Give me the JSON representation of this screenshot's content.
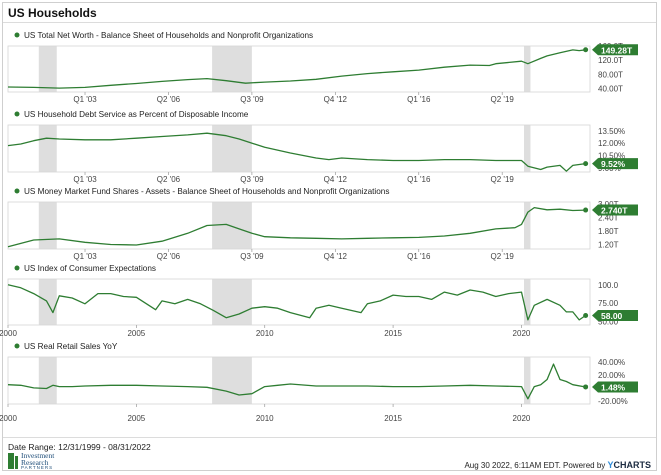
{
  "page": {
    "title": "US Households",
    "date_range": "Date Range: 12/31/1999 - 08/31/2022",
    "footer_stamp": "Aug 30 2022, 6:11AM EDT. Powered by ",
    "brand_prefix": "Y",
    "brand_suffix": "CHARTS",
    "logo_line1": "Investment",
    "logo_line2": "Research",
    "logo_line3": "PARTNERS"
  },
  "colors": {
    "series": "#2e7d32",
    "recession": "#dedede",
    "axis_text": "#444444",
    "frame": "#cfcfcf"
  },
  "chart_data": [
    {
      "type": "line",
      "title": "US Total Net Worth - Balance Sheet of Households and Nonprofit Organizations",
      "x_range": [
        2000.0,
        2022.67
      ],
      "ylim": [
        30,
        160
      ],
      "yticks": [
        40,
        80,
        120,
        160
      ],
      "ytick_labels": [
        "40.00T",
        "80.00T",
        "120.0T",
        "160.0T"
      ],
      "xtick_type": "quarter",
      "xticks": [
        2003.0,
        2006.25,
        2009.5,
        2012.75,
        2016.0,
        2019.25
      ],
      "xtick_labels": [
        "Q1 '03",
        "Q2 '06",
        "Q3 '09",
        "Q4 '12",
        "Q1 '16",
        "Q2 '19"
      ],
      "last_value_label": "149.28T",
      "last_value": 149.28,
      "x": [
        2000.0,
        2001.0,
        2002.0,
        2003.0,
        2004.0,
        2005.0,
        2006.0,
        2007.0,
        2007.75,
        2008.5,
        2009.25,
        2010.0,
        2011.0,
        2012.0,
        2013.0,
        2014.0,
        2015.0,
        2016.0,
        2017.0,
        2018.0,
        2018.75,
        2019.0,
        2020.0,
        2020.25,
        2020.75,
        2021.0,
        2021.5,
        2022.0,
        2022.25,
        2022.5
      ],
      "y": [
        44,
        43,
        41,
        43,
        49,
        54,
        60,
        65,
        68,
        62,
        55,
        58,
        61,
        66,
        75,
        82,
        87,
        92,
        100,
        106,
        105,
        110,
        117,
        110,
        125,
        132,
        141,
        149,
        147,
        149.28
      ]
    },
    {
      "type": "line",
      "title": "US Household Debt Service as Percent of Disposable Income",
      "x_range": [
        2000.0,
        2022.67
      ],
      "ylim": [
        8.5,
        14.2
      ],
      "yticks": [
        9.0,
        10.5,
        12.0,
        13.5
      ],
      "ytick_labels": [
        "9.00%",
        "10.50%",
        "12.00%",
        "13.50%"
      ],
      "xtick_type": "quarter",
      "xticks": [
        2003.0,
        2006.25,
        2009.5,
        2012.75,
        2016.0,
        2019.25
      ],
      "xtick_labels": [
        "Q1 '03",
        "Q2 '06",
        "Q3 '09",
        "Q4 '12",
        "Q1 '16",
        "Q2 '19"
      ],
      "last_value_label": "9.52%",
      "last_value": 9.52,
      "x": [
        2000.0,
        2000.5,
        2001.0,
        2001.5,
        2002.0,
        2003.0,
        2004.0,
        2005.0,
        2006.0,
        2007.0,
        2007.75,
        2008.5,
        2009.0,
        2010.0,
        2011.0,
        2012.0,
        2012.5,
        2013.0,
        2014.0,
        2015.0,
        2016.0,
        2017.0,
        2018.0,
        2019.0,
        2020.0,
        2020.25,
        2020.75,
        2021.0,
        2021.5,
        2021.75,
        2022.0,
        2022.5
      ],
      "y": [
        11.7,
        11.9,
        12.3,
        12.6,
        12.5,
        12.4,
        12.4,
        12.6,
        12.8,
        13.0,
        13.2,
        12.9,
        12.5,
        11.5,
        10.8,
        10.2,
        10.0,
        10.2,
        10.0,
        9.9,
        9.9,
        10.0,
        10.0,
        9.9,
        9.9,
        9.2,
        8.8,
        9.1,
        9.3,
        8.6,
        9.3,
        9.52
      ]
    },
    {
      "type": "line",
      "title": "US Money Market Fund Shares - Assets - Balance Sheet of Households and Nonprofit Organizations",
      "x_range": [
        2000.0,
        2022.67
      ],
      "ylim": [
        1.0,
        3.1
      ],
      "yticks": [
        1.2,
        1.8,
        2.4,
        3.0
      ],
      "ytick_labels": [
        "1.20T",
        "1.80T",
        "2.40T",
        "3.00T"
      ],
      "xtick_type": "quarter",
      "xticks": [
        2003.0,
        2006.25,
        2009.5,
        2012.75,
        2016.0,
        2019.25
      ],
      "xtick_labels": [
        "Q1 '03",
        "Q2 '06",
        "Q3 '09",
        "Q4 '12",
        "Q1 '16",
        "Q2 '19"
      ],
      "last_value_label": "2.740T",
      "last_value": 2.74,
      "x": [
        2000.0,
        2001.0,
        2002.0,
        2003.0,
        2004.0,
        2005.0,
        2006.0,
        2007.0,
        2007.75,
        2008.5,
        2009.0,
        2009.5,
        2010.0,
        2011.0,
        2012.0,
        2013.0,
        2014.0,
        2015.0,
        2016.0,
        2017.0,
        2018.0,
        2019.0,
        2019.75,
        2020.0,
        2020.25,
        2020.5,
        2021.0,
        2021.5,
        2022.0,
        2022.5
      ],
      "y": [
        1.1,
        1.4,
        1.45,
        1.3,
        1.2,
        1.18,
        1.35,
        1.7,
        2.05,
        2.1,
        1.9,
        1.7,
        1.55,
        1.5,
        1.48,
        1.45,
        1.48,
        1.5,
        1.52,
        1.58,
        1.7,
        1.9,
        1.95,
        2.1,
        2.65,
        2.85,
        2.75,
        2.78,
        2.72,
        2.74
      ]
    },
    {
      "type": "line",
      "title": "US Index of Consumer Expectations",
      "x_range": [
        2000.0,
        2022.67
      ],
      "ylim": [
        45,
        108
      ],
      "yticks": [
        50,
        75,
        100
      ],
      "ytick_labels": [
        "50.00",
        "75.00",
        "100.0"
      ],
      "xtick_type": "year",
      "xticks": [
        2000,
        2005,
        2010,
        2015,
        2020
      ],
      "xtick_labels": [
        "2000",
        "2005",
        "2010",
        "2015",
        "2020"
      ],
      "last_value_label": "58.00",
      "last_value": 58.0,
      "x": [
        2000.0,
        2000.5,
        2001.0,
        2001.5,
        2001.75,
        2002.0,
        2002.5,
        2003.0,
        2003.5,
        2004.0,
        2004.5,
        2005.0,
        2005.75,
        2006.0,
        2006.5,
        2007.0,
        2007.5,
        2008.0,
        2008.5,
        2009.0,
        2009.5,
        2010.0,
        2010.5,
        2011.0,
        2011.75,
        2012.0,
        2012.5,
        2013.0,
        2013.75,
        2014.0,
        2014.5,
        2015.0,
        2015.5,
        2016.0,
        2016.5,
        2017.0,
        2017.5,
        2018.0,
        2018.5,
        2019.0,
        2019.5,
        2020.0,
        2020.25,
        2020.5,
        2021.0,
        2021.5,
        2021.75,
        2022.0,
        2022.25,
        2022.5
      ],
      "y": [
        100,
        96,
        88,
        78,
        62,
        85,
        82,
        74,
        88,
        88,
        84,
        83,
        66,
        78,
        74,
        80,
        74,
        65,
        55,
        60,
        68,
        70,
        68,
        62,
        55,
        68,
        72,
        68,
        62,
        74,
        78,
        86,
        84,
        84,
        80,
        90,
        86,
        93,
        90,
        84,
        88,
        90,
        52,
        72,
        80,
        72,
        63,
        63,
        52,
        58
      ]
    },
    {
      "type": "line",
      "title": "US Real Retail Sales YoY",
      "x_range": [
        2000.0,
        2022.67
      ],
      "ylim": [
        -25,
        48
      ],
      "yticks": [
        -20,
        0,
        20,
        40
      ],
      "ytick_labels": [
        "-20.00%",
        "0.00%",
        "20.00%",
        "40.00%"
      ],
      "xtick_type": "year",
      "xticks": [
        2000,
        2005,
        2010,
        2015,
        2020
      ],
      "xtick_labels": [
        "2000",
        "2005",
        "2010",
        "2015",
        "2020"
      ],
      "last_value_label": "1.48%",
      "last_value": 1.48,
      "x": [
        2000.0,
        2000.5,
        2001.0,
        2001.5,
        2001.75,
        2002.0,
        2002.5,
        2003.0,
        2004.0,
        2005.0,
        2006.0,
        2007.0,
        2007.75,
        2008.5,
        2009.0,
        2009.5,
        2010.0,
        2010.5,
        2011.0,
        2012.0,
        2013.0,
        2014.0,
        2015.0,
        2016.0,
        2017.0,
        2018.0,
        2019.0,
        2020.0,
        2020.25,
        2020.5,
        2020.75,
        2021.0,
        2021.25,
        2021.5,
        2021.75,
        2022.0,
        2022.5
      ],
      "y": [
        5,
        4,
        0,
        -1,
        4,
        2,
        2,
        3,
        4,
        4,
        3,
        2,
        1,
        -5,
        -11,
        -9,
        2,
        4,
        6,
        3,
        3,
        3,
        2,
        2,
        3,
        4,
        3,
        2,
        -17,
        2,
        5,
        13,
        37,
        13,
        10,
        5,
        1.48
      ]
    }
  ],
  "recessions": [
    [
      2001.2,
      2001.9
    ],
    [
      2007.95,
      2009.5
    ],
    [
      2020.1,
      2020.35
    ]
  ]
}
